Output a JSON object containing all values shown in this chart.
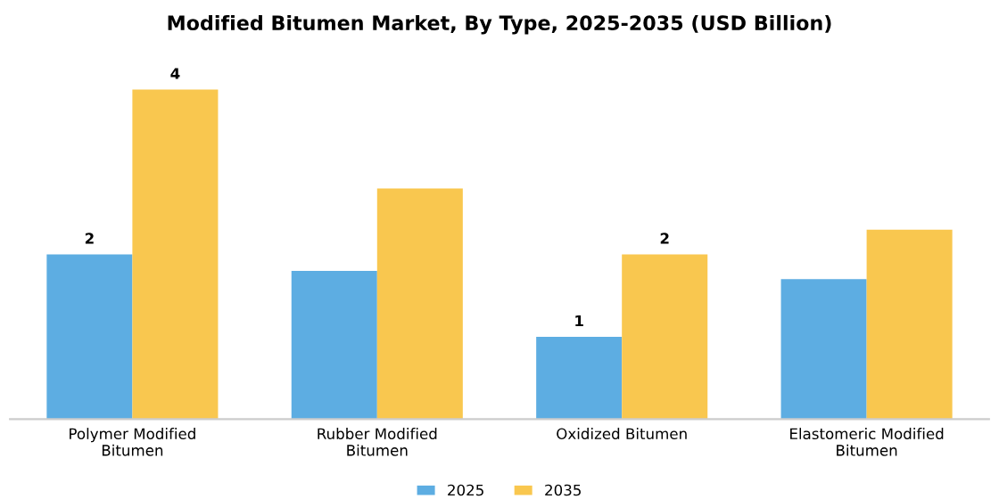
{
  "chart_data": {
    "type": "bar",
    "title": "Modified Bitumen Market, By Type, 2025-2035 (USD Billion)",
    "categories": [
      "Polymer Modified\nBitumen",
      "Rubber Modified\nBitumen",
      "Oxidized Bitumen",
      "Elastomeric Modified\nBitumen"
    ],
    "legend": "bottom",
    "series": [
      {
        "name": "2025",
        "color": "#5dade2",
        "values": [
          2,
          1.8,
          1,
          1.7
        ],
        "value_labels": [
          "2",
          null,
          "1",
          null
        ]
      },
      {
        "name": "2035",
        "color": "#f9c74f",
        "values": [
          4,
          2.8,
          2,
          2.3
        ],
        "value_labels": [
          "4",
          null,
          "2",
          null
        ]
      }
    ]
  }
}
